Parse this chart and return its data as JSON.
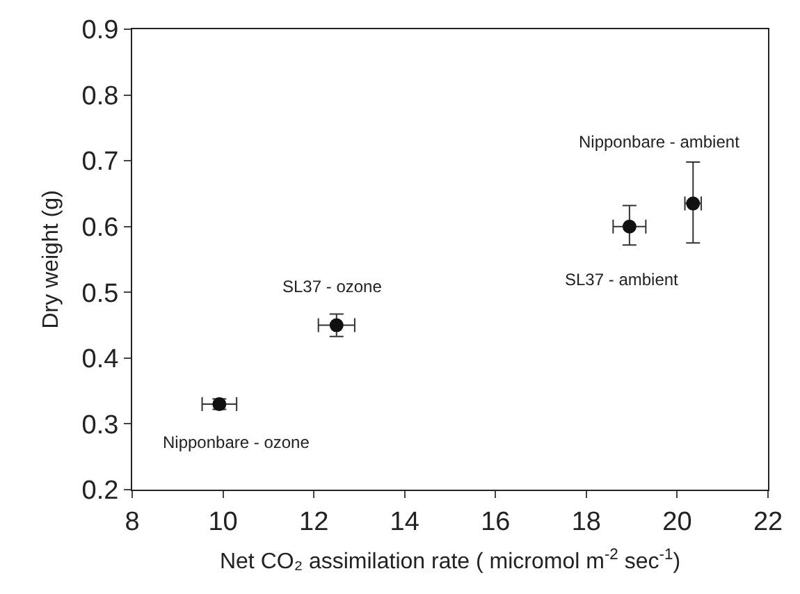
{
  "chart_data": {
    "type": "scatter",
    "xlabel": "Net CO₂ assimilation rate ( micromol m$^{-2}$ sec$^{-1}$)",
    "ylabel": "Dry weight (g)",
    "x": [
      9.92,
      12.5,
      18.95,
      20.35
    ],
    "values": [
      0.33,
      0.45,
      0.6,
      0.635
    ],
    "errors": [
      0.008,
      0.017,
      [
        0.572,
        0.632
      ],
      [
        0.575,
        0.698
      ]
    ],
    "xerrors": [
      0.38,
      0.4,
      0.36,
      0.18
    ],
    "color": "#111111",
    "marker": "circle",
    "xlim": [
      8,
      22
    ],
    "xticks": [
      8,
      10,
      12,
      14,
      16,
      18,
      20,
      22
    ],
    "ylim": [
      0.2,
      0.9
    ],
    "yticks": [
      0.2,
      0.3,
      0.4,
      0.5,
      0.6,
      0.7,
      0.8,
      0.9
    ],
    "grid": false,
    "annotations": [
      {
        "text": "Nipponbare - ozone",
        "x": 9.92,
        "y": 0.33
      },
      {
        "text": "SL37 - ozone",
        "x": 12.5,
        "y": 0.45
      },
      {
        "text": "SL37 - ambient",
        "x": 18.95,
        "y": 0.6
      },
      {
        "text": "Nipponbare - ambient",
        "x": 20.35,
        "y": 0.698
      }
    ]
  }
}
